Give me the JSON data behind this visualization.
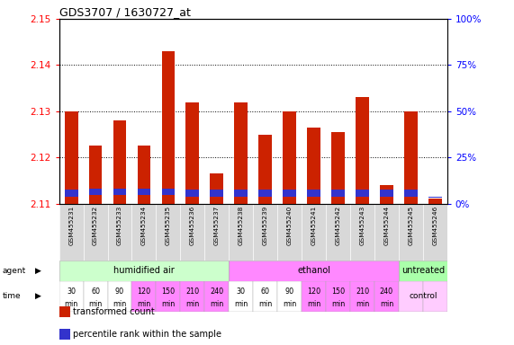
{
  "title": "GDS3707 / 1630727_at",
  "samples": [
    "GSM455231",
    "GSM455232",
    "GSM455233",
    "GSM455234",
    "GSM455235",
    "GSM455236",
    "GSM455237",
    "GSM455238",
    "GSM455239",
    "GSM455240",
    "GSM455241",
    "GSM455242",
    "GSM455243",
    "GSM455244",
    "GSM455245",
    "GSM455246"
  ],
  "bar_tops": [
    2.13,
    2.1225,
    2.128,
    2.1225,
    2.143,
    2.132,
    2.1165,
    2.132,
    2.125,
    2.13,
    2.1265,
    2.1255,
    2.133,
    2.114,
    2.13,
    2.111
  ],
  "blue_bottoms": [
    2.1115,
    2.1118,
    2.1118,
    2.1118,
    2.1118,
    2.1115,
    2.1115,
    2.1115,
    2.1115,
    2.1115,
    2.1115,
    2.1115,
    2.1115,
    2.1115,
    2.1115,
    2.1112
  ],
  "blue_tops": [
    2.113,
    2.1133,
    2.1133,
    2.1133,
    2.1133,
    2.113,
    2.113,
    2.113,
    2.113,
    2.113,
    2.113,
    2.113,
    2.113,
    2.113,
    2.113,
    2.1115
  ],
  "ymin": 2.11,
  "ymax": 2.15,
  "yticks_left": [
    2.11,
    2.12,
    2.13,
    2.14,
    2.15
  ],
  "yticks_right": [
    0,
    25,
    50,
    75,
    100
  ],
  "bar_color": "#cc2200",
  "blue_color": "#3333cc",
  "bar_width": 0.55,
  "agent_groups": [
    {
      "label": "humidified air",
      "start": 0,
      "end": 7,
      "color": "#ccffcc"
    },
    {
      "label": "ethanol",
      "start": 7,
      "end": 14,
      "color": "#ff88ff"
    },
    {
      "label": "untreated",
      "start": 14,
      "end": 16,
      "color": "#aaffaa"
    }
  ],
  "time_labels": [
    "30",
    "60",
    "90",
    "120",
    "150",
    "210",
    "240",
    "30",
    "60",
    "90",
    "120",
    "150",
    "210",
    "240",
    "",
    ""
  ],
  "time_colors": [
    "#ffffff",
    "#ffffff",
    "#ffffff",
    "#ff88ff",
    "#ff88ff",
    "#ff88ff",
    "#ff88ff",
    "#ffffff",
    "#ffffff",
    "#ffffff",
    "#ff88ff",
    "#ff88ff",
    "#ff88ff",
    "#ff88ff",
    "#ffccff",
    "#ffccff"
  ],
  "legend_red_label": "transformed count",
  "legend_blue_label": "percentile rank within the sample",
  "grid_lines": [
    2.12,
    2.13,
    2.14
  ]
}
